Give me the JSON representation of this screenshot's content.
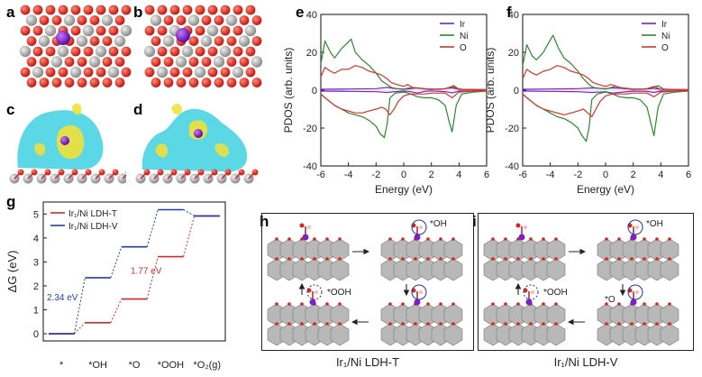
{
  "panels": {
    "a": "a",
    "b": "b",
    "c": "c",
    "d": "d",
    "e": "e",
    "f": "f",
    "g": "g",
    "h": "h",
    "i": "i"
  },
  "colors": {
    "Ir": "#7a22c8",
    "Ni": "#2a8a2a",
    "O": "#e0302a",
    "LDH_T": "#d42a2a",
    "LDH_V": "#1f3fae",
    "metal": "#9a9a9a",
    "oxygen": "#d9261c",
    "iso_cyan": "#3fd0e0",
    "iso_yellow": "#f2e03a"
  },
  "chart_data": [
    {
      "type": "line",
      "panel": "e",
      "xlabel": "Energy (eV)",
      "ylabel": "PDOS (arb. units)",
      "xlim": [
        -6,
        6
      ],
      "ylim": [
        -40,
        40
      ],
      "xticks": [
        -6,
        -4,
        -2,
        0,
        2,
        4,
        6
      ],
      "yticks": [
        -40,
        -20,
        0,
        20,
        40
      ],
      "legend_position": "top-right",
      "series": [
        {
          "name": "Ir",
          "color": "#7a22c8",
          "x": [
            -6,
            -4,
            -2,
            -1.2,
            -0.8,
            0,
            0.5,
            1,
            1.5,
            2,
            3,
            3.5,
            4,
            6
          ],
          "y": [
            0.5,
            0.6,
            0.8,
            1.5,
            1.0,
            0.5,
            0.8,
            1.2,
            0.6,
            0.4,
            0.8,
            1.2,
            0.5,
            0.3
          ]
        },
        {
          "name": "Ir",
          "color": "#7a22c8",
          "x": [
            -6,
            -4,
            -2,
            -1.2,
            -0.8,
            0,
            0.5,
            1,
            1.5,
            2,
            3,
            3.5,
            4,
            6
          ],
          "y": [
            -0.5,
            -0.6,
            -0.8,
            -1.2,
            -0.9,
            -0.5,
            -0.8,
            -1.5,
            -0.6,
            -0.4,
            -0.8,
            -1.4,
            -0.5,
            -0.3
          ]
        },
        {
          "name": "Ni",
          "color": "#2a8a2a",
          "x": [
            -6,
            -5.7,
            -5.3,
            -5,
            -4.5,
            -4.2,
            -3.8,
            -3.5,
            -3,
            -2.5,
            -2,
            -1.6,
            -1.2,
            -0.9,
            -0.5,
            0,
            0.3,
            0.6,
            1,
            1.5,
            2,
            2.5,
            3,
            3.4,
            3.6,
            3.9,
            4.2,
            5,
            6
          ],
          "y": [
            14,
            26,
            20,
            17,
            22,
            24,
            27,
            20,
            16,
            13,
            9,
            5,
            3,
            1.5,
            0.8,
            0.6,
            1,
            1.5,
            1.2,
            0.8,
            0.6,
            0.5,
            0.8,
            1.5,
            2.5,
            1,
            0.5,
            0.3,
            0.2
          ]
        },
        {
          "name": "Ni",
          "color": "#2a8a2a",
          "x": [
            -6,
            -5.7,
            -5,
            -4.5,
            -4,
            -3.5,
            -3,
            -2.5,
            -2,
            -1.7,
            -1.4,
            -1.2,
            -1,
            -0.6,
            0,
            0.5,
            1,
            1.5,
            2,
            2.5,
            3,
            3.3,
            3.5,
            3.8,
            4.2,
            5,
            6
          ],
          "y": [
            -2,
            -4,
            -8,
            -10,
            -12,
            -13,
            -14,
            -16,
            -19,
            -23,
            -25,
            -18,
            -4,
            -1.5,
            -1,
            -2,
            -3.5,
            -4,
            -4,
            -5,
            -8,
            -17,
            -22,
            -8,
            -2,
            -1,
            -0.5
          ]
        },
        {
          "name": "O",
          "color": "#e0302a",
          "x": [
            -6,
            -5.7,
            -5.3,
            -5,
            -4.5,
            -4,
            -3.5,
            -3,
            -2.5,
            -2,
            -1.6,
            -1.2,
            -0.9,
            -0.5,
            0,
            0.3,
            0.6,
            1,
            1.5,
            2,
            2.5,
            3,
            3.5,
            4,
            5,
            6
          ],
          "y": [
            7,
            12,
            10,
            9,
            11,
            11,
            13,
            12,
            10,
            9,
            8,
            6,
            4,
            3,
            2,
            3,
            1.5,
            1,
            0.8,
            0.6,
            0.5,
            0.8,
            2,
            0.5,
            0.3,
            0.2
          ]
        },
        {
          "name": "O",
          "color": "#e0302a",
          "x": [
            -6,
            -5.7,
            -5,
            -4.5,
            -4,
            -3.5,
            -3,
            -2.5,
            -2,
            -1.6,
            -1.3,
            -1,
            -0.7,
            -0.4,
            0,
            0.5,
            1,
            1.5,
            2,
            2.5,
            3,
            3.5,
            4,
            5,
            6
          ],
          "y": [
            -2,
            -4,
            -8,
            -10,
            -11,
            -12,
            -12,
            -11,
            -10,
            -9,
            -10,
            -13,
            -10,
            -6,
            -3,
            -2,
            -2,
            -2,
            -1.5,
            -1.5,
            -1.5,
            -4,
            -1,
            -0.5,
            -0.3
          ]
        }
      ]
    },
    {
      "type": "line",
      "panel": "f",
      "xlabel": "Energy (eV)",
      "ylabel": "PDOS (arb. units)",
      "xlim": [
        -6,
        6
      ],
      "ylim": [
        -40,
        40
      ],
      "xticks": [
        -6,
        -4,
        -2,
        0,
        2,
        4,
        6
      ],
      "yticks": [
        -40,
        -20,
        0,
        20,
        40
      ],
      "legend_position": "top-right",
      "series": [
        {
          "name": "Ir",
          "color": "#7a22c8",
          "x": [
            -6,
            -4,
            -2,
            -1,
            0,
            0.5,
            1,
            2,
            3,
            3.5,
            4,
            6
          ],
          "y": [
            0.5,
            0.6,
            0.8,
            1.2,
            0.8,
            1.2,
            1.0,
            0.5,
            0.6,
            1.0,
            0.5,
            0.3
          ]
        },
        {
          "name": "Ir",
          "color": "#7a22c8",
          "x": [
            -6,
            -4,
            -2,
            -1,
            0,
            0.5,
            1,
            2,
            3,
            3.5,
            4,
            6
          ],
          "y": [
            -0.5,
            -0.6,
            -0.8,
            -1.2,
            -0.8,
            -1.5,
            -1.2,
            -0.5,
            -0.6,
            -1.2,
            -0.5,
            -0.3
          ]
        },
        {
          "name": "Ni",
          "color": "#2a8a2a",
          "x": [
            -6,
            -5.7,
            -5.3,
            -5,
            -4.5,
            -4.2,
            -3.8,
            -3.4,
            -3,
            -2.5,
            -2,
            -1.6,
            -1.2,
            -0.9,
            -0.5,
            0,
            0.3,
            0.7,
            1,
            1.5,
            2,
            2.5,
            3,
            3.5,
            3.8,
            4.2,
            5,
            6
          ],
          "y": [
            13,
            24,
            18,
            16,
            20,
            24,
            29,
            22,
            17,
            14,
            10,
            6,
            3,
            1.5,
            1,
            0.6,
            1.2,
            2,
            1.5,
            1,
            0.6,
            0.5,
            0.8,
            1.6,
            2.4,
            0.6,
            0.3,
            0.2
          ]
        },
        {
          "name": "Ni",
          "color": "#2a8a2a",
          "x": [
            -6,
            -5.7,
            -5,
            -4.5,
            -4,
            -3.5,
            -3,
            -2.5,
            -2,
            -1.7,
            -1.4,
            -1.2,
            -1,
            -0.6,
            0,
            0.5,
            1,
            1.5,
            2,
            2.5,
            3,
            3.3,
            3.5,
            3.8,
            4.2,
            5,
            6
          ],
          "y": [
            -2,
            -4,
            -8,
            -10,
            -12,
            -14,
            -15,
            -17,
            -20,
            -24,
            -27,
            -20,
            -5,
            -2,
            -1,
            -2,
            -3.5,
            -4,
            -4,
            -5,
            -9,
            -18,
            -24,
            -9,
            -2,
            -1,
            -0.5
          ]
        },
        {
          "name": "O",
          "color": "#e0302a",
          "x": [
            -6,
            -5.7,
            -5.3,
            -5,
            -4.5,
            -4,
            -3.5,
            -3,
            -2.5,
            -2,
            -1.6,
            -1.2,
            -0.9,
            -0.5,
            0,
            0.4,
            0.8,
            1.2,
            1.6,
            2,
            2.5,
            3,
            3.5,
            4,
            5,
            6
          ],
          "y": [
            6,
            11,
            9,
            8,
            10,
            11,
            13,
            12,
            10,
            9,
            8,
            6,
            4,
            3,
            2,
            3,
            2,
            1,
            0.8,
            0.6,
            0.5,
            0.8,
            2,
            0.5,
            0.3,
            0.2
          ]
        },
        {
          "name": "O",
          "color": "#e0302a",
          "x": [
            -6,
            -5.7,
            -5,
            -4.5,
            -4,
            -3.5,
            -3,
            -2.5,
            -2,
            -1.6,
            -1.3,
            -1,
            -0.7,
            -0.4,
            0,
            0.5,
            1,
            1.5,
            2,
            2.5,
            3,
            3.5,
            4,
            5,
            6
          ],
          "y": [
            -2,
            -4,
            -8,
            -10,
            -11,
            -12,
            -13,
            -12,
            -11,
            -10,
            -12,
            -14,
            -10,
            -6,
            -3,
            -2,
            -2,
            -2,
            -1.5,
            -1.5,
            -1.5,
            -3.5,
            -1,
            -0.5,
            -0.3
          ]
        }
      ]
    },
    {
      "type": "line",
      "subtype": "step",
      "panel": "g",
      "ylabel": "ΔG (eV)",
      "xlabel": "",
      "categories": [
        "*",
        "*OH",
        "*O",
        "*OOH",
        "*O₂(g)"
      ],
      "ylim": [
        -0.3,
        5.5
      ],
      "yticks": [
        0,
        1,
        2,
        3,
        4,
        5
      ],
      "legend_position": "top-left",
      "series": [
        {
          "name": "Ir₁/Ni LDH-T",
          "color": "#d42a2a",
          "values": [
            0,
            0.46,
            1.45,
            3.22,
            4.92
          ]
        },
        {
          "name": "Ir₁/Ni LDH-V",
          "color": "#1f3fae",
          "values": [
            0,
            2.34,
            3.63,
            5.18,
            4.92
          ]
        }
      ],
      "annotations": [
        {
          "text": "2.34 eV",
          "color": "#1f3fae"
        },
        {
          "text": "1.77 eV",
          "color": "#d42a2a"
        }
      ]
    }
  ],
  "panel_h": {
    "caption": "Ir₁/Ni LDH-T",
    "adsorbates": {
      "oh": "*OH",
      "ooh": "*OOH"
    }
  },
  "panel_i": {
    "caption": "Ir₁/Ni LDH-V",
    "adsorbates": {
      "oh": "*OH",
      "ooh": "*OOH",
      "o": "*O"
    }
  },
  "legend_labels": {
    "ir": "Ir",
    "ni": "Ni",
    "o": "O"
  }
}
